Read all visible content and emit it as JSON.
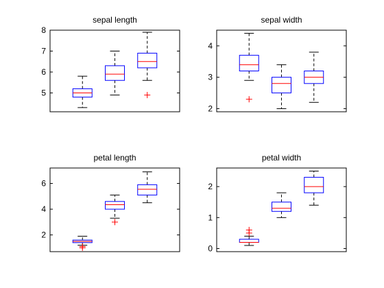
{
  "figure": {
    "background": "#ffffff"
  },
  "colors": {
    "box": "#0000ff",
    "median": "#ff0000",
    "whisker": "#000000",
    "outlier": "#ff0000",
    "axes": "#000000"
  },
  "chart_data": [
    {
      "type": "box",
      "title": "sepal length",
      "ylim": [
        4.1,
        8.0
      ],
      "yticks": [
        5,
        6,
        7,
        8
      ],
      "boxes": [
        {
          "q1": 4.8,
          "median": 5.0,
          "q3": 5.2,
          "whisker_low": 4.3,
          "whisker_high": 5.8,
          "outliers": []
        },
        {
          "q1": 5.6,
          "median": 5.9,
          "q3": 6.3,
          "whisker_low": 4.9,
          "whisker_high": 7.0,
          "outliers": []
        },
        {
          "q1": 6.2,
          "median": 6.5,
          "q3": 6.9,
          "whisker_low": 5.6,
          "whisker_high": 7.9,
          "outliers": [
            4.9
          ]
        }
      ]
    },
    {
      "type": "box",
      "title": "sepal width",
      "ylim": [
        1.9,
        4.5
      ],
      "yticks": [
        2,
        3,
        4
      ],
      "boxes": [
        {
          "q1": 3.2,
          "median": 3.4,
          "q3": 3.7,
          "whisker_low": 2.9,
          "whisker_high": 4.4,
          "outliers": [
            2.3
          ]
        },
        {
          "q1": 2.5,
          "median": 2.8,
          "q3": 3.0,
          "whisker_low": 2.0,
          "whisker_high": 3.4,
          "outliers": []
        },
        {
          "q1": 2.8,
          "median": 3.0,
          "q3": 3.2,
          "whisker_low": 2.2,
          "whisker_high": 3.8,
          "outliers": []
        }
      ]
    },
    {
      "type": "box",
      "title": "petal length",
      "ylim": [
        0.7,
        7.2
      ],
      "yticks": [
        2,
        4,
        6
      ],
      "boxes": [
        {
          "q1": 1.4,
          "median": 1.5,
          "q3": 1.6,
          "whisker_low": 1.2,
          "whisker_high": 1.9,
          "outliers": [
            1.0,
            1.1
          ]
        },
        {
          "q1": 4.0,
          "median": 4.35,
          "q3": 4.6,
          "whisker_low": 3.3,
          "whisker_high": 5.1,
          "outliers": [
            3.0
          ]
        },
        {
          "q1": 5.1,
          "median": 5.55,
          "q3": 5.9,
          "whisker_low": 4.5,
          "whisker_high": 6.9,
          "outliers": []
        }
      ]
    },
    {
      "type": "box",
      "title": "petal width",
      "ylim": [
        -0.1,
        2.6
      ],
      "yticks": [
        0,
        1,
        2
      ],
      "boxes": [
        {
          "q1": 0.2,
          "median": 0.2,
          "q3": 0.3,
          "whisker_low": 0.1,
          "whisker_high": 0.4,
          "outliers": [
            0.5,
            0.6
          ]
        },
        {
          "q1": 1.2,
          "median": 1.3,
          "q3": 1.5,
          "whisker_low": 1.0,
          "whisker_high": 1.8,
          "outliers": []
        },
        {
          "q1": 1.8,
          "median": 2.0,
          "q3": 2.3,
          "whisker_low": 1.4,
          "whisker_high": 2.5,
          "outliers": []
        }
      ]
    }
  ]
}
